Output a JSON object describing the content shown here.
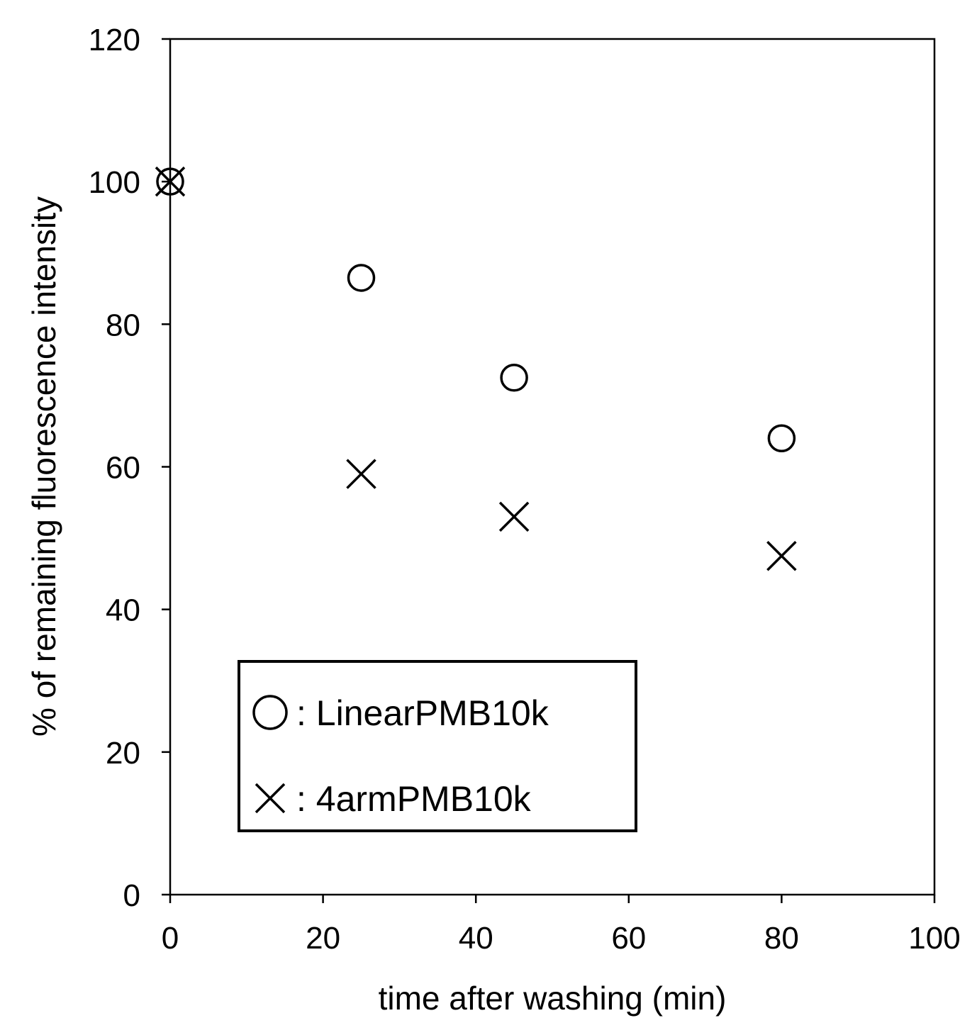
{
  "chart_data": {
    "type": "scatter",
    "title": "",
    "xlabel": "time after washing (min)",
    "ylabel": "% of remaining fluorescence intensity",
    "xlim": [
      0,
      100
    ],
    "ylim": [
      0,
      120
    ],
    "x_ticks": [
      0,
      20,
      40,
      60,
      80,
      100
    ],
    "y_ticks": [
      0,
      20,
      40,
      60,
      80,
      100,
      120
    ],
    "x_tick_labels": [
      "0",
      "20",
      "40",
      "60",
      "80",
      "100"
    ],
    "y_tick_labels": [
      "0",
      "20",
      "40",
      "60",
      "80",
      "100",
      "120"
    ],
    "grid": false,
    "legend_position": "lower-left",
    "series": [
      {
        "name": "LinearPMB10k",
        "legend_label": ": LinearPMB10k",
        "marker": "circle",
        "color": "#000000",
        "x": [
          0,
          25,
          45,
          80
        ],
        "y": [
          100,
          86.5,
          72.5,
          64
        ]
      },
      {
        "name": "4armPMB10k",
        "legend_label": ": 4armPMB10k",
        "marker": "cross",
        "color": "#000000",
        "x": [
          0,
          25,
          45,
          80
        ],
        "y": [
          100,
          59,
          53,
          47.5
        ]
      }
    ]
  }
}
